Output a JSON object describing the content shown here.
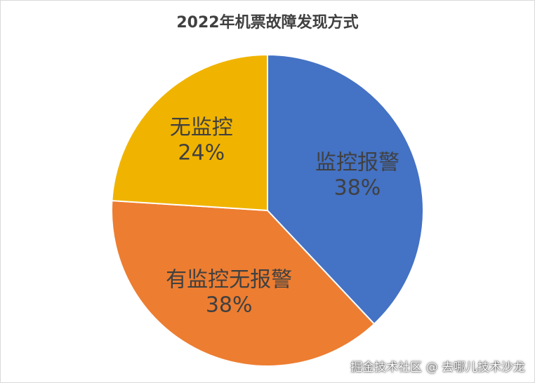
{
  "chart_data": {
    "type": "pie",
    "title": "2022年机票故障发现方式",
    "slices": [
      {
        "label": "监控报警",
        "value": 38,
        "value_label": "38%",
        "color": "#4472C4"
      },
      {
        "label": "有监控无报警",
        "value": 38,
        "value_label": "38%",
        "color": "#ED7D31"
      },
      {
        "label": "无监控",
        "value": 24,
        "value_label": "24%",
        "color": "#F0B400"
      }
    ],
    "start": "12 o'clock",
    "direction": "clockwise",
    "legend": "none"
  },
  "watermark": "掘金技术社区 @ 去哪儿技术沙龙"
}
